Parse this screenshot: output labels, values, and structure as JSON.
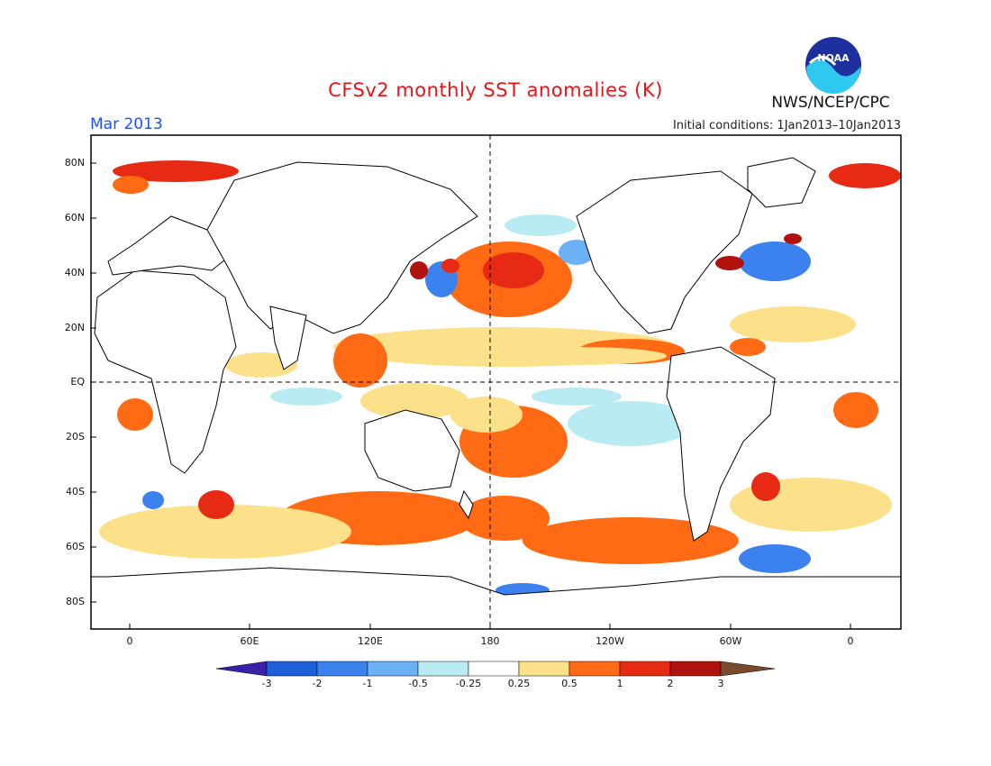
{
  "header": {
    "title": "CFSv2 monthly SST anomalies (K)",
    "org": "NWS/NCEP/CPC",
    "logo_text": "NOAA",
    "month": "Mar 2013",
    "initial_conditions": "Initial conditions: 1Jan2013–10Jan2013"
  },
  "map": {
    "lat_labels": [
      "80N",
      "60N",
      "40N",
      "20N",
      "EQ",
      "20S",
      "40S",
      "60S",
      "80S"
    ],
    "lon_labels": [
      "0",
      "60E",
      "120E",
      "180",
      "120W",
      "60W",
      "0"
    ]
  },
  "colorbar": {
    "labels": [
      "-3",
      "-2",
      "-1",
      "-0.5",
      "-0.25",
      "0.25",
      "0.5",
      "1",
      "2",
      "3"
    ],
    "colors": [
      "#3a1fa8",
      "#1f5fd8",
      "#3b82ee",
      "#6cb0f5",
      "#b8ecf2",
      "#ffffff",
      "#fde08a",
      "#ff6a14",
      "#e62a14",
      "#b0120e",
      "#7a4a2e"
    ]
  },
  "colors": {
    "title": "#e8141a",
    "month": "#1f4fff",
    "frame": "#000000"
  }
}
